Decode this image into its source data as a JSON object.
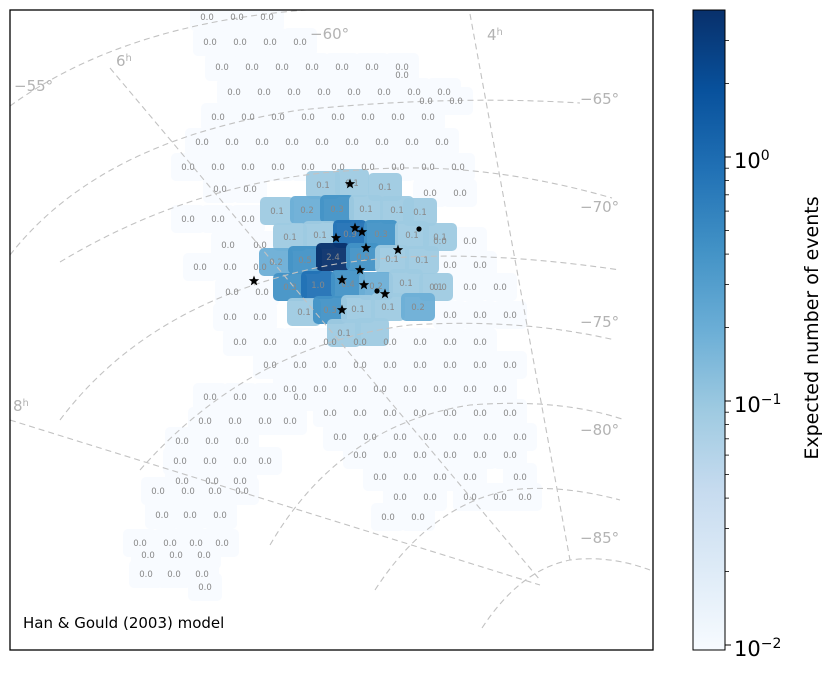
{
  "chart_data": {
    "type": "heatmap",
    "annotation": "Han & Gould (2003) model",
    "grid_labels": {
      "declination": [
        "−55°",
        "−60°",
        "−65°",
        "−70°",
        "−75°",
        "−80°",
        "−85°"
      ],
      "ra_hour_values": [
        "6",
        "4",
        "8"
      ],
      "ra_hour_unit": "h"
    },
    "colorbar": {
      "label": "Expected number of events",
      "scale": "log",
      "range": [
        0.01,
        3.2
      ],
      "tick_bases": [
        "10",
        "10",
        "10"
      ],
      "tick_exponents": [
        "0",
        "−1",
        "−2"
      ],
      "tick_values": [
        1,
        0.1,
        0.01
      ],
      "colormap": "Blues",
      "colors": [
        "#f7fbff",
        "#deebf7",
        "#c6dbef",
        "#9ecae1",
        "#6baed6",
        "#4292c6",
        "#2171b5",
        "#08519c",
        "#08306b"
      ]
    },
    "marker_colors": {
      "star": "#000000",
      "dot": "#000000"
    },
    "nonzero_fields": [
      {
        "value": "0.1"
      },
      {
        "value": "0.1"
      },
      {
        "value": "0.1"
      },
      {
        "value": "0.1"
      },
      {
        "value": "0.1"
      },
      {
        "value": "0.2"
      },
      {
        "value": "0.3"
      },
      {
        "value": "0.1"
      },
      {
        "value": "0.1"
      },
      {
        "value": "0.1"
      },
      {
        "value": "0.1"
      },
      {
        "value": "0.9"
      },
      {
        "value": "0.3"
      },
      {
        "value": "0.1"
      },
      {
        "value": "0.1"
      },
      {
        "value": "0.2"
      },
      {
        "value": "0.5"
      },
      {
        "value": "2.4"
      },
      {
        "value": "0.5"
      },
      {
        "value": "0.1"
      },
      {
        "value": "0.1"
      },
      {
        "value": "0.3"
      },
      {
        "value": "1.0"
      },
      {
        "value": "0.4"
      },
      {
        "value": "0.2"
      },
      {
        "value": "0.1"
      },
      {
        "value": "0.1"
      },
      {
        "value": "0.1"
      },
      {
        "value": "0.3"
      },
      {
        "value": "0.1"
      },
      {
        "value": "0.1"
      },
      {
        "value": "0.2"
      },
      {
        "value": "0.1"
      }
    ],
    "zero_value_text": "0.0",
    "zero_field_count": 363
  }
}
